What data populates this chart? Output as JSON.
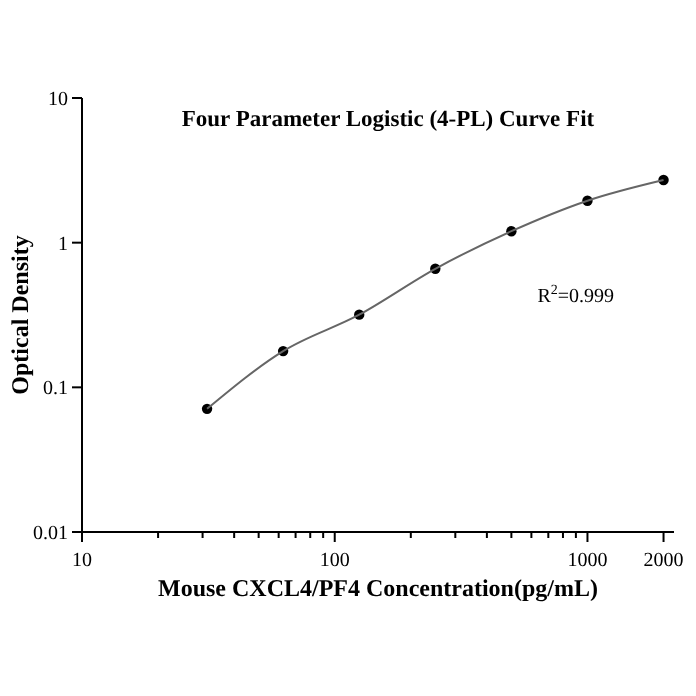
{
  "chart_data": {
    "type": "scatter",
    "title": "Four Parameter Logistic (4-PL) Curve Fit",
    "xlabel": "Mouse CXCL4/PF4 Concentration(pg/mL)",
    "ylabel": "Optical Density",
    "annotations": [
      "R$^{2}$=0.999"
    ],
    "log": "xy",
    "grid": false,
    "x": [
      31.25,
      62.5,
      125,
      250,
      500,
      1000,
      2000
    ],
    "series": [
      {
        "marker": "circle",
        "color": "#000000",
        "values": [
          0.071,
          0.178,
          0.318,
          0.66,
          1.2,
          1.95,
          2.71
        ]
      },
      {
        "type": "line",
        "marker": "none",
        "color": "#666666",
        "line_style": "solid",
        "x": [
          31.25,
          62.5,
          125,
          250,
          500,
          1000,
          2000
        ],
        "values": [
          0.071,
          0.178,
          0.318,
          0.66,
          1.2,
          1.95,
          2.71
        ]
      }
    ],
    "xlim": [
      10,
      2200
    ],
    "ylim": [
      0.01,
      10
    ],
    "xticks": [
      10,
      {
        "value": 20,
        "label": null
      },
      {
        "value": 30,
        "label": null
      },
      {
        "value": 40,
        "label": null
      },
      {
        "value": 50,
        "label": null
      },
      {
        "value": 60,
        "label": null
      },
      {
        "value": 70,
        "label": null
      },
      {
        "value": 80,
        "label": null
      },
      {
        "value": 90,
        "label": null
      },
      100,
      {
        "value": 200,
        "label": null
      },
      {
        "value": 300,
        "label": null
      },
      {
        "value": 400,
        "label": null
      },
      {
        "value": 500,
        "label": null
      },
      {
        "value": 600,
        "label": null
      },
      {
        "value": 700,
        "label": null
      },
      {
        "value": 800,
        "label": null
      },
      {
        "value": 900,
        "label": null
      },
      1000,
      2000
    ],
    "yticks": [
      0.01,
      0.1,
      1,
      10
    ]
  }
}
